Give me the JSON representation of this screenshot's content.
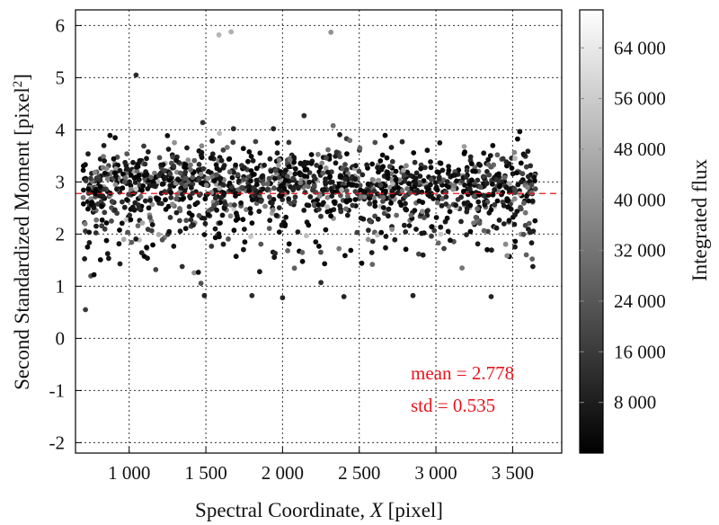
{
  "chart_data": {
    "type": "scatter",
    "xlabel_text": "Spectral Coordinate, ",
    "xlabel_var": "X",
    "xlabel_unit": " [pixel]",
    "ylabel_text": "Second Standardized Moment [pixel",
    "ylabel_sup": "2",
    "ylabel_close": "]",
    "colorbar_label": "Integrated flux",
    "xlim": [
      650,
      3820
    ],
    "ylim": [
      -2.2,
      6.3
    ],
    "x_ticks": [
      1000,
      1500,
      2000,
      2500,
      3000,
      3500
    ],
    "x_tick_labels": [
      "1 000",
      "1 500",
      "2 000",
      "2 500",
      "3 000",
      "3 500"
    ],
    "y_ticks": [
      -2,
      -1,
      0,
      1,
      2,
      3,
      4,
      5,
      6
    ],
    "y_tick_labels": [
      "-2",
      "-1",
      "0",
      "1",
      "2",
      "3",
      "4",
      "5",
      "6"
    ],
    "colorbar_range": [
      0,
      70000
    ],
    "colorbar_ticks": [
      8000,
      16000,
      24000,
      32000,
      40000,
      48000,
      56000,
      64000
    ],
    "colorbar_tick_labels": [
      "8 000",
      "16 000",
      "24 000",
      "32 000",
      "40 000",
      "48 000",
      "56 000",
      "64 000"
    ],
    "colormap": [
      "#000000",
      "#ffffff"
    ],
    "grid": true,
    "mean_line": {
      "value": 2.778,
      "color": "#e8141c"
    },
    "annotations": {
      "mean": "mean = 2.778",
      "std": "std = 0.535",
      "color": "#e8141c"
    },
    "series": [
      {
        "x_range": [
          700,
          3650
        ],
        "y_mean": 2.778,
        "y_std": 0.535,
        "n_points": 1500,
        "outliers": [
          {
            "x": 1585,
            "y": 5.82,
            "flux": 50000
          },
          {
            "x": 1665,
            "y": 5.88,
            "flux": 48000
          },
          {
            "x": 2315,
            "y": 5.87,
            "flux": 40000
          },
          {
            "x": 1045,
            "y": 5.05,
            "flux": 12000
          },
          {
            "x": 1480,
            "y": 4.14,
            "flux": 14000
          },
          {
            "x": 1940,
            "y": 4.02,
            "flux": 10000
          },
          {
            "x": 2140,
            "y": 4.27,
            "flux": 12000
          },
          {
            "x": 2330,
            "y": 4.08,
            "flux": 30000
          },
          {
            "x": 1680,
            "y": 4.02,
            "flux": 12000
          },
          {
            "x": 715,
            "y": 0.55,
            "flux": 16000
          },
          {
            "x": 1490,
            "y": 0.82,
            "flux": 10000
          },
          {
            "x": 1800,
            "y": 0.82,
            "flux": 12000
          },
          {
            "x": 2000,
            "y": 0.78,
            "flux": 10000
          },
          {
            "x": 2400,
            "y": 0.8,
            "flux": 10000
          },
          {
            "x": 2850,
            "y": 0.82,
            "flux": 10000
          },
          {
            "x": 3360,
            "y": 0.8,
            "flux": 10000
          },
          {
            "x": 3170,
            "y": 1.35,
            "flux": 32000
          },
          {
            "x": 2250,
            "y": 1.07,
            "flux": 12000
          }
        ]
      }
    ]
  }
}
